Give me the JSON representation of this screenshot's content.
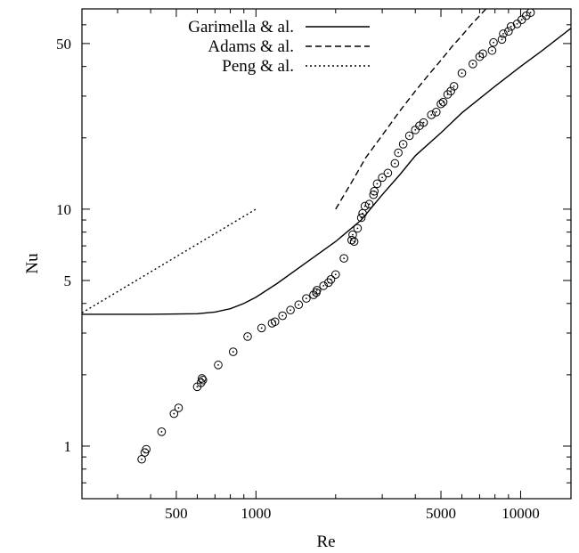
{
  "chart_data": {
    "type": "line",
    "title": "",
    "xlabel": "Re",
    "ylabel": "Nu",
    "xscale": "log",
    "yscale": "log",
    "xlim": [
      220,
      15500
    ],
    "ylim": [
      0.6,
      70
    ],
    "grid": false,
    "legend": "top-center",
    "x_ticks": [
      500,
      1000,
      5000,
      10000
    ],
    "x_tick_labels": [
      "500",
      "1000",
      "5000",
      "10000"
    ],
    "y_ticks": [
      1,
      5,
      10,
      50
    ],
    "y_tick_labels": [
      "1",
      "5",
      "10",
      "50"
    ],
    "x_minor_ticks": [
      300,
      400,
      600,
      700,
      800,
      900,
      2000,
      3000,
      4000,
      6000,
      7000,
      8000,
      9000
    ],
    "y_minor_ticks": [
      0.7,
      0.8,
      0.9,
      2,
      3,
      4,
      6,
      7,
      8,
      9,
      20,
      30,
      40,
      60
    ],
    "series": [
      {
        "name": "Garimella & al.",
        "style": "solid",
        "x": [
          220,
          400,
          600,
          700,
          800,
          900,
          1000,
          1200,
          1500,
          2000,
          2500,
          3000,
          3500,
          4000,
          5000,
          6000,
          8000,
          10000,
          12000,
          15500
        ],
        "y": [
          3.6,
          3.6,
          3.62,
          3.68,
          3.8,
          4.0,
          4.25,
          4.85,
          5.8,
          7.3,
          9.0,
          11.5,
          14.0,
          16.8,
          21.0,
          25.5,
          33.0,
          40.0,
          46.5,
          58.0
        ]
      },
      {
        "name": "Adams & al.",
        "style": "dashed",
        "x": [
          2000,
          2300,
          2600,
          3000,
          3500,
          4000,
          4500,
          5000,
          5500,
          6000,
          6500,
          7000,
          8000
        ],
        "y": [
          10.0,
          13.0,
          16.5,
          20.5,
          26.0,
          31.5,
          37.0,
          42.5,
          48.5,
          54.0,
          60.0,
          65.5,
          77.0
        ]
      },
      {
        "name": "Peng & al.",
        "style": "dotted",
        "x": [
          220,
          1000
        ],
        "y": [
          3.65,
          10.0
        ]
      },
      {
        "name": "",
        "style": "markers",
        "x": [
          370,
          380,
          385,
          440,
          490,
          510,
          600,
          620,
          625,
          630,
          720,
          820,
          930,
          1050,
          1150,
          1180,
          1260,
          1350,
          1450,
          1550,
          1650,
          1690,
          1700,
          1800,
          1880,
          1920,
          2000,
          2150,
          2300,
          2320,
          2350,
          2420,
          2500,
          2530,
          2580,
          2680,
          2780,
          2800,
          2870,
          3000,
          3150,
          3350,
          3450,
          3600,
          3800,
          4000,
          4150,
          4300,
          4600,
          4800,
          5000,
          5100,
          5300,
          5450,
          5600,
          6000,
          6600,
          7000,
          7200,
          7800,
          7900,
          8500,
          8600,
          9000,
          9200,
          9700,
          10100,
          10500,
          10900
        ],
        "y": [
          0.88,
          0.94,
          0.97,
          1.15,
          1.37,
          1.45,
          1.78,
          1.85,
          1.93,
          1.9,
          2.2,
          2.5,
          2.9,
          3.15,
          3.3,
          3.35,
          3.55,
          3.75,
          3.95,
          4.2,
          4.35,
          4.45,
          4.55,
          4.75,
          4.9,
          5.05,
          5.3,
          6.2,
          7.4,
          7.8,
          7.3,
          8.3,
          9.2,
          9.6,
          10.3,
          10.5,
          11.5,
          11.9,
          12.8,
          13.6,
          14.2,
          15.6,
          17.3,
          18.8,
          20.4,
          21.6,
          22.5,
          23.2,
          25.0,
          25.7,
          27.8,
          28.3,
          30.5,
          31.5,
          33.0,
          37.5,
          41.0,
          44.0,
          45.3,
          46.7,
          50.5,
          52.0,
          55.0,
          56.3,
          59.0,
          60.5,
          63.0,
          65.5,
          67.5
        ]
      }
    ]
  }
}
